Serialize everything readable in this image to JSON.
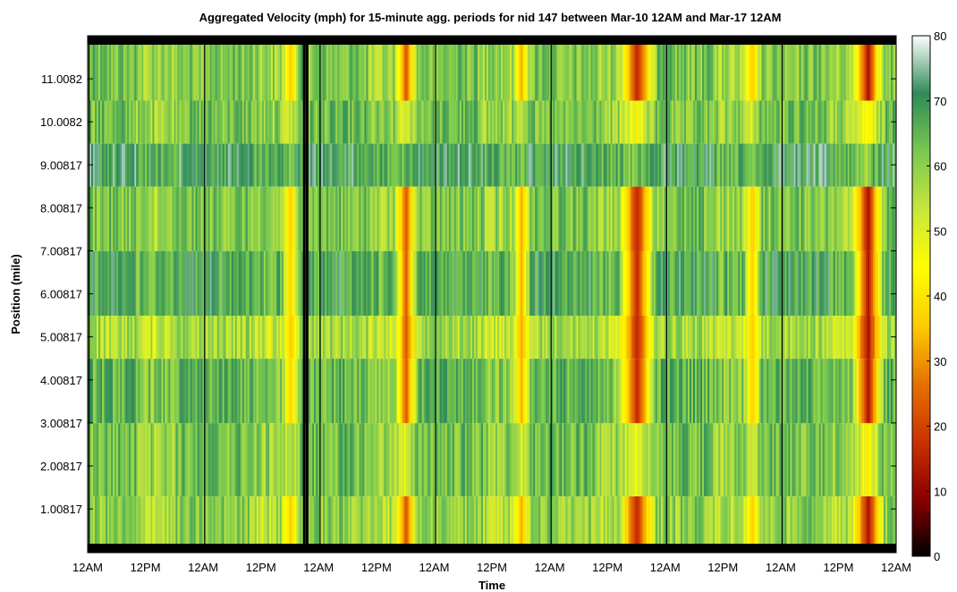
{
  "chart_data": {
    "type": "heatmap",
    "title": "Aggregated Velocity (mph) for 15-minute agg. periods for nid 147  between Mar-10 12AM and Mar-17 12AM",
    "xlabel": "Time",
    "ylabel": "Position (mile)",
    "x_ticks": [
      "12AM",
      "12PM",
      "12AM",
      "12PM",
      "12AM",
      "12PM",
      "12AM",
      "12PM",
      "12AM",
      "12PM",
      "12AM",
      "12PM",
      "12AM",
      "12PM",
      "12AM"
    ],
    "xlim_hours": [
      0,
      168
    ],
    "y_ticks": [
      "11.0082",
      "10.0082",
      "9.00817",
      "8.00817",
      "7.00817",
      "6.00817",
      "5.00817",
      "4.00817",
      "3.00817",
      "2.00817",
      "1.00817"
    ],
    "y_tick_values": [
      11.0082,
      10.0082,
      9.00817,
      8.00817,
      7.00817,
      6.00817,
      5.00817,
      4.00817,
      3.00817,
      2.00817,
      1.00817
    ],
    "ylim": [
      0.2,
      11.8
    ],
    "colorbar": {
      "label": "",
      "min": 0,
      "max": 80,
      "ticks": [
        0,
        10,
        20,
        30,
        40,
        50,
        60,
        70,
        80
      ],
      "colormap": [
        "#000000",
        "#8b0000",
        "#cc3300",
        "#e67300",
        "#ffcc00",
        "#ffff00",
        "#c8e63c",
        "#78c850",
        "#2e8b57",
        "#ffffff"
      ]
    },
    "rows": [
      {
        "from": 10.5,
        "to": 11.8,
        "base": 62
      },
      {
        "from": 9.5,
        "to": 10.5,
        "base": 63
      },
      {
        "from": 8.5,
        "to": 9.5,
        "base": 70
      },
      {
        "from": 7.0,
        "to": 8.5,
        "base": 62
      },
      {
        "from": 5.5,
        "to": 7.0,
        "base": 68
      },
      {
        "from": 4.5,
        "to": 5.5,
        "base": 57
      },
      {
        "from": 3.0,
        "to": 4.5,
        "base": 65
      },
      {
        "from": 1.3,
        "to": 3.0,
        "base": 63
      },
      {
        "from": 0.2,
        "to": 1.3,
        "base": 60
      }
    ],
    "congestion_events_hours": [
      {
        "center": 42,
        "width": 2.0,
        "min_speed": 35
      },
      {
        "center": 66,
        "width": 2.5,
        "min_speed": 22
      },
      {
        "center": 90,
        "width": 2.0,
        "min_speed": 32
      },
      {
        "center": 114,
        "width": 4.0,
        "min_speed": 15
      },
      {
        "center": 138,
        "width": 2.0,
        "min_speed": 35
      },
      {
        "center": 162,
        "width": 3.5,
        "min_speed": 12
      }
    ],
    "gap_lines_hours": [
      0.3,
      24.3,
      45.0,
      45.6,
      48.3,
      72.3,
      96.3,
      120.3,
      144.3
    ]
  }
}
